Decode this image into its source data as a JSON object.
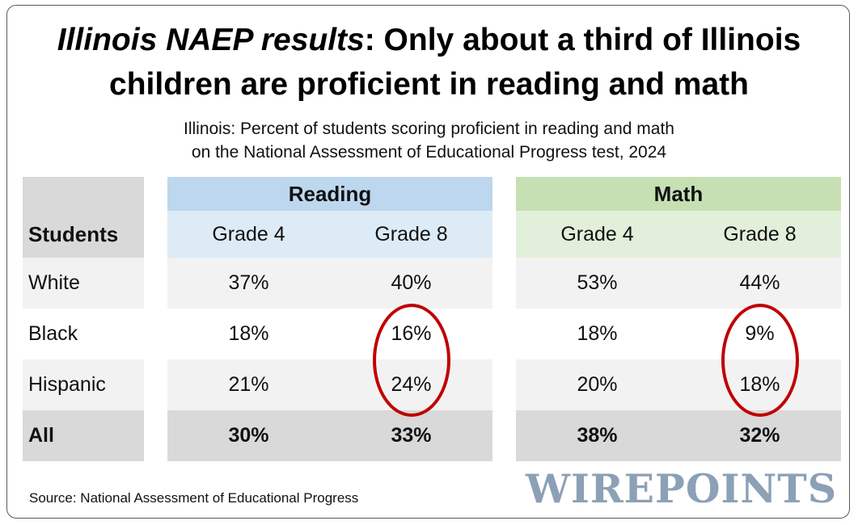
{
  "title": {
    "italic_part": "Illinois NAEP results",
    "rest_line1": ": Only about a third of Illinois",
    "line2": "children are proficient in reading and math"
  },
  "subtitle": {
    "line1": "Illinois: Percent of students scoring proficient in reading and math",
    "line2": "on the National Assessment of Educational Progress test, 2024"
  },
  "chart_data": {
    "type": "table",
    "row_header_label": "Students",
    "groups": [
      {
        "name": "Reading",
        "color": "#bdd7ee",
        "subcolor": "#ddebf7",
        "columns": [
          "Grade 4",
          "Grade 8"
        ]
      },
      {
        "name": "Math",
        "color": "#c6e0b4",
        "subcolor": "#e2efda",
        "columns": [
          "Grade 4",
          "Grade 8"
        ]
      }
    ],
    "rows": [
      {
        "label": "White",
        "values": [
          "37%",
          "40%",
          "53%",
          "44%"
        ]
      },
      {
        "label": "Black",
        "values": [
          "18%",
          "16%",
          "18%",
          "9%"
        ]
      },
      {
        "label": "Hispanic",
        "values": [
          "21%",
          "24%",
          "20%",
          "18%"
        ]
      },
      {
        "label": "All",
        "values": [
          "30%",
          "33%",
          "38%",
          "32%"
        ]
      }
    ],
    "highlighted": [
      {
        "group": "Reading",
        "column": "Grade 8",
        "rows": [
          "Black",
          "Hispanic"
        ]
      },
      {
        "group": "Math",
        "column": "Grade 8",
        "rows": [
          "Black",
          "Hispanic"
        ]
      }
    ],
    "highlight_color": "#c00000"
  },
  "source": "Source: National Assessment of Educational Progress",
  "logo_text": "WIREPOINTS"
}
